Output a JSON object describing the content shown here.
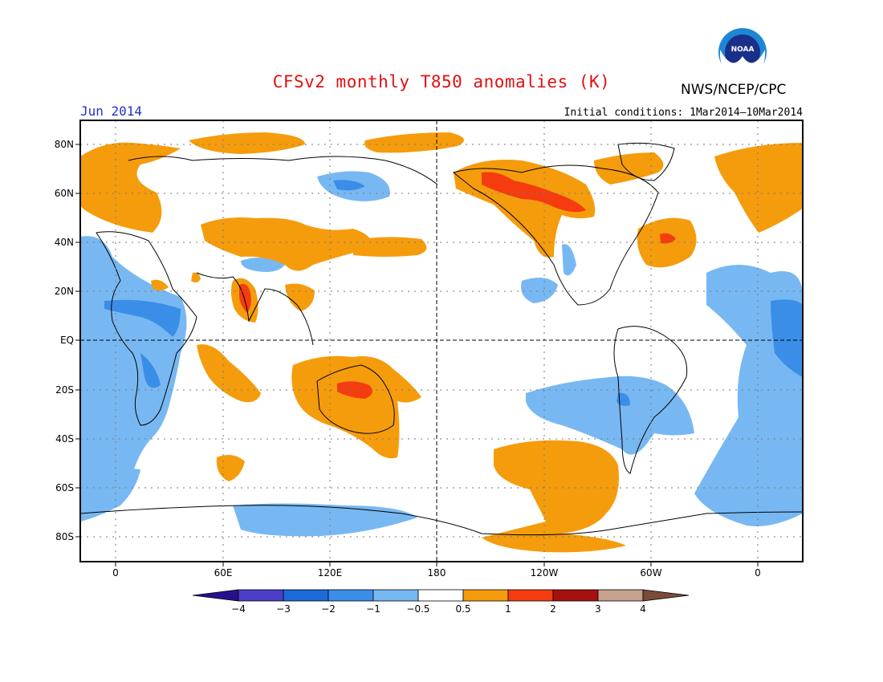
{
  "title": "CFSv2 monthly T850 anomalies (K)",
  "agency": "NWS/NCEP/CPC",
  "logo_text": "NOAA",
  "month": "Jun 2014",
  "initial_conditions": "Initial conditions: 1Mar2014–10Mar2014",
  "lat_labels": [
    "80N",
    "60N",
    "40N",
    "20N",
    "EQ",
    "20S",
    "40S",
    "60S",
    "80S"
  ],
  "lon_labels": [
    "0",
    "60E",
    "120E",
    "180",
    "120W",
    "60W",
    "0"
  ],
  "colorbar": {
    "labels": [
      "−4",
      "−3",
      "−2",
      "−1",
      "−0.5",
      "0.5",
      "1",
      "2",
      "3",
      "4"
    ],
    "colors": [
      "#2a0f8c",
      "#4b3fc8",
      "#1d6ad8",
      "#3a8ee8",
      "#78b8f2",
      "#ffffff",
      "#f59c0c",
      "#f43c0f",
      "#a51010",
      "#c8a090",
      "#7a4a3a"
    ]
  }
}
